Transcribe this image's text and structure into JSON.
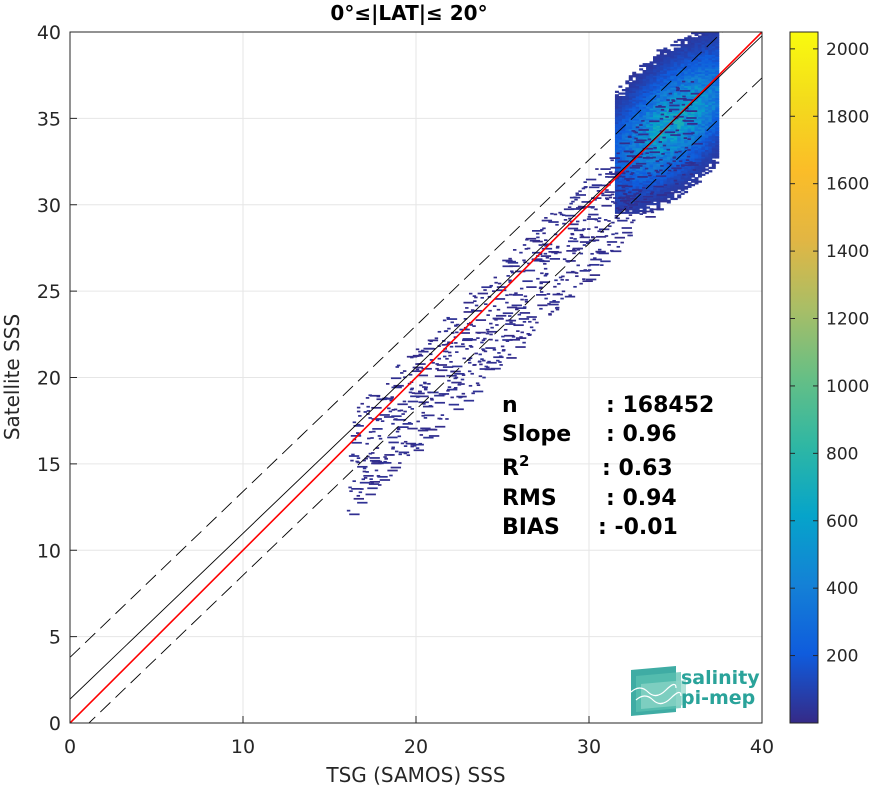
{
  "chart_data": {
    "type": "heatmap",
    "title": "0°≤|LAT|≤ 20°",
    "xlabel": "TSG (SAMOS) SSS",
    "ylabel": "Satellite SSS",
    "xlim": [
      0,
      40
    ],
    "ylim": [
      0,
      40
    ],
    "x_ticks": [
      0,
      10,
      20,
      30,
      40
    ],
    "y_ticks": [
      0,
      5,
      10,
      15,
      20,
      25,
      30,
      35,
      40
    ],
    "grid": true,
    "colorbar": {
      "range": [
        0,
        2050
      ],
      "ticks": [
        200,
        400,
        600,
        800,
        1000,
        1200,
        1400,
        1600,
        1800,
        2000
      ],
      "colormap": "parula"
    },
    "density": {
      "main_cluster_center": [
        34.8,
        34.8
      ],
      "main_cluster_peak_count": 700,
      "main_cluster_x_range": [
        31.5,
        37.5
      ],
      "main_cluster_y_range": [
        29.5,
        40
      ]
    },
    "lines": [
      {
        "name": "identity",
        "color": "#ff0000",
        "slope": 1.0,
        "intercept": 0.0,
        "style": "solid"
      },
      {
        "name": "regression",
        "color": "#000000",
        "slope": 0.96,
        "intercept": 1.38,
        "style": "solid"
      },
      {
        "name": "upper-bound",
        "color": "#000000",
        "slope": 0.96,
        "intercept": 3.8,
        "style": "dashed"
      },
      {
        "name": "lower-bound",
        "color": "#000000",
        "slope": 0.96,
        "intercept": -1.05,
        "style": "dashed"
      }
    ],
    "stats": [
      {
        "label": "n",
        "value": ": 168452"
      },
      {
        "label": "Slope",
        "value": ": 0.96"
      },
      {
        "label": "R",
        "sup": "2",
        "value": ": 0.63"
      },
      {
        "label": "RMS",
        "value": ": 0.94"
      },
      {
        "label": "BIAS",
        "value": ": -0.01"
      }
    ]
  },
  "logo": {
    "line1": "salinity",
    "line2": "pi-mep",
    "color": "#2aa39a"
  }
}
